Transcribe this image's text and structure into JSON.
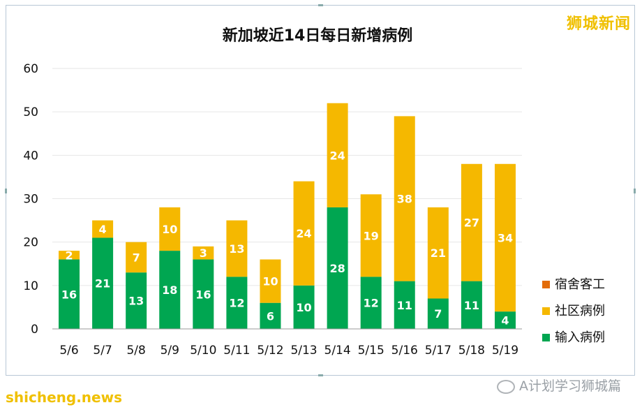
{
  "watermark": "狮城新闻",
  "footer_left": "shicheng.news",
  "footer_right": "A计划学习狮城篇",
  "colors": {
    "imported": "#00a651",
    "community": "#f5b800",
    "dorm": "#e36c09"
  },
  "chart_data": {
    "type": "bar",
    "stacked": true,
    "title": "新加坡近14日每日新增病例",
    "categories": [
      "5/6",
      "5/7",
      "5/8",
      "5/9",
      "5/10",
      "5/11",
      "5/12",
      "5/13",
      "5/14",
      "5/15",
      "5/16",
      "5/17",
      "5/18",
      "5/19"
    ],
    "series": [
      {
        "name": "输入病例",
        "values": [
          16,
          21,
          13,
          18,
          16,
          12,
          6,
          10,
          28,
          12,
          11,
          7,
          11,
          4
        ]
      },
      {
        "name": "社区病例",
        "values": [
          2,
          4,
          7,
          10,
          3,
          13,
          10,
          24,
          24,
          19,
          38,
          21,
          27,
          34
        ]
      },
      {
        "name": "宿舍客工",
        "values": [
          0,
          0,
          0,
          0,
          0,
          0,
          0,
          0,
          0,
          0,
          0,
          0,
          0,
          0
        ]
      }
    ],
    "ylim": [
      0,
      60
    ],
    "yticks": [
      0,
      10,
      20,
      30,
      40,
      50,
      60
    ],
    "grid": true,
    "legend": "right"
  }
}
